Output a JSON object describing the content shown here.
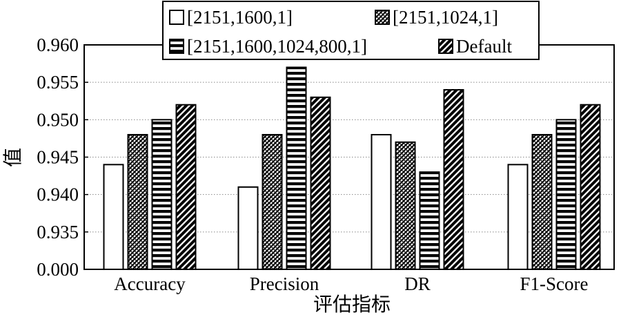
{
  "chart_data": {
    "type": "bar",
    "xlabel": "评估指标",
    "ylabel": "值",
    "categories": [
      "Accuracy",
      "Precision",
      "DR",
      "F1-Score"
    ],
    "y_ticks": [
      "0.000",
      "0.935",
      "0.940",
      "0.945",
      "0.950",
      "0.955",
      "0.960"
    ],
    "ylim": [
      0.93,
      0.96
    ],
    "axis_break": "lowest tick labeled 0.000 marks the axis origin",
    "grid": "horizontal dotted",
    "legend_position": "top",
    "series": [
      {
        "name": "[2151,1600,1]",
        "pattern": "empty",
        "values": [
          0.944,
          0.941,
          0.948,
          0.944
        ]
      },
      {
        "name": "[2151,1024,1]",
        "pattern": "crosshatch",
        "values": [
          0.948,
          0.948,
          0.947,
          0.948
        ]
      },
      {
        "name": "[2151,1600,1024,800,1]",
        "pattern": "horizontal",
        "values": [
          0.95,
          0.957,
          0.943,
          0.95
        ]
      },
      {
        "name": "Default",
        "pattern": "diagonal",
        "values": [
          0.952,
          0.953,
          0.954,
          0.952
        ]
      }
    ],
    "colors": {
      "ink": "#000000",
      "fill": "#ffffff",
      "grid": "#888888"
    }
  }
}
